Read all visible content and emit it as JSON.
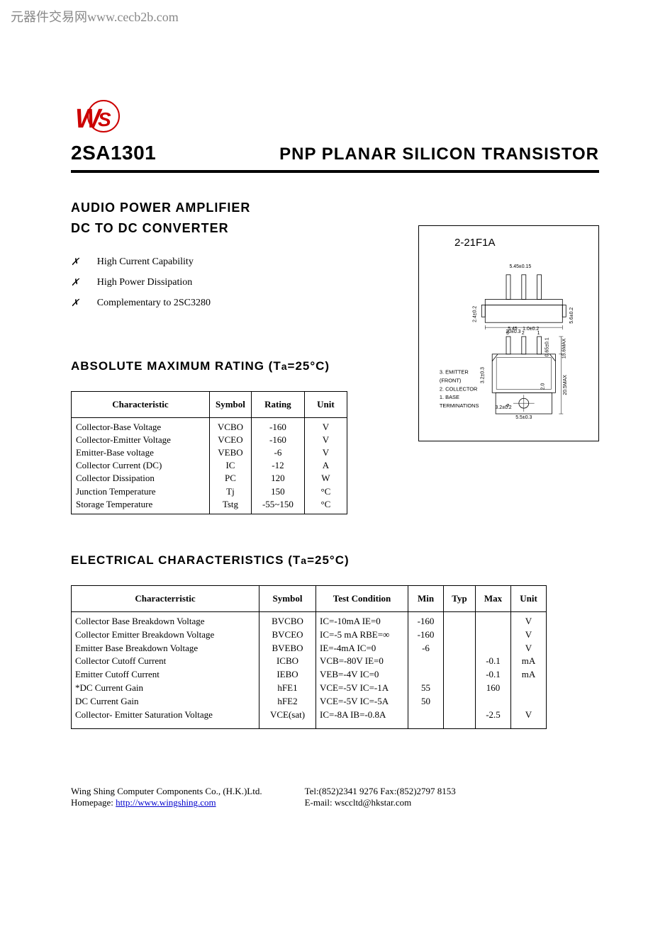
{
  "source_label": "元器件交易网www.cecb2b.com",
  "part_number": "2SA1301",
  "title": "PNP   PLANAR  SILICON  TRANSISTOR",
  "subhead_lines": [
    "AUDIO  POWER  AMPLIFIER",
    "DC  TO  DC  CONVERTER"
  ],
  "features": [
    "High  Current  Capability",
    "High  Power  Dissipation",
    "Complementary  to  2SC3280"
  ],
  "amr": {
    "section_title_prefix": "ABSOLUTE  MAXIMUM  RATING  (T",
    "section_title_a": "a",
    "section_title_suffix": "=25°C)",
    "columns": [
      "Characteristic",
      "Symbol",
      "Rating",
      "Unit"
    ],
    "rows": [
      {
        "char": "Collector-Base Voltage",
        "sym": "VCBO",
        "rat": "-160",
        "unit": "V"
      },
      {
        "char": "Collector-Emitter Voltage",
        "sym": "VCEO",
        "rat": "-160",
        "unit": "V"
      },
      {
        "char": "Emitter-Base voltage",
        "sym": "VEBO",
        "rat": "-6",
        "unit": "V"
      },
      {
        "char": "Collector Current (DC)",
        "sym": "IC",
        "rat": "-12",
        "unit": "A"
      },
      {
        "char": "Collector Dissipation",
        "sym": "PC",
        "rat": "120",
        "unit": "W"
      },
      {
        "char": "Junction Temperature",
        "sym": "Tj",
        "rat": "150",
        "unit": "°C"
      },
      {
        "char": "Storage Temperature",
        "sym": "Tstg",
        "rat": "-55~150",
        "unit": "°C"
      }
    ]
  },
  "ec": {
    "section_title_prefix": "ELECTRICAL  CHARACTERISTICS  (T",
    "section_title_a": "a",
    "section_title_suffix": "=25°C)",
    "columns": [
      "Characterristic",
      "Symbol",
      "Test Condition",
      "Min",
      "Typ",
      "Max",
      "Unit"
    ],
    "rows": [
      {
        "char": "Collector Base Breakdown Voltage",
        "sym": "BVCBO",
        "tc": "IC=-10mA    IE=0",
        "min": "-160",
        "typ": "",
        "max": "",
        "unit": "V"
      },
      {
        "char": "Collector Emitter Breakdown Voltage",
        "sym": "BVCEO",
        "tc": "IC=-5 mA    RBE=∞",
        "min": "-160",
        "typ": "",
        "max": "",
        "unit": "V"
      },
      {
        "char": "Emitter Base Breakdown Voltage",
        "sym": "BVEBO",
        "tc": "IE=-4mA    IC=0",
        "min": "-6",
        "typ": "",
        "max": "",
        "unit": "V"
      },
      {
        "char": "Collector Cutoff Current",
        "sym": "ICBO",
        "tc": "VCB=-80V    IE=0",
        "min": "",
        "typ": "",
        "max": "-0.1",
        "unit": "mA"
      },
      {
        "char": "Emitter Cutoff Current",
        "sym": "IEBO",
        "tc": "VEB=-4V    IC=0",
        "min": "",
        "typ": "",
        "max": "-0.1",
        "unit": "mA"
      },
      {
        "char": "*DC  Current  Gain",
        "sym": "hFE1",
        "tc": "VCE=-5V    IC=-1A",
        "min": "55",
        "typ": "",
        "max": "160",
        "unit": ""
      },
      {
        "char": "DC  Current  Gain",
        "sym": "hFE2",
        "tc": "VCE=-5V    IC=-5A",
        "min": "50",
        "typ": "",
        "max": "",
        "unit": ""
      },
      {
        "char": "Collector- Emitter Saturation Voltage",
        "sym": "VCE(sat)",
        "tc": "IC=-8A   IB=-0.8A",
        "min": "",
        "typ": "",
        "max": "-2.5",
        "unit": "V"
      }
    ]
  },
  "package": {
    "label": "2-21F1A",
    "terminations_title": "TERMINATIONS",
    "terms": [
      "1. BASE",
      "2. COLLECTOR",
      "   (FRONT)",
      "3. EMITTER"
    ],
    "dims": {
      "hole_dia": "3.2±0.2",
      "body_h": "20.5MAX",
      "body_w": "5.5±0.3",
      "lead_w": "1.0±0.2",
      "lead_s": "0.65±0.1",
      "pitch": "5.45",
      "overall_w": "15.6MAX",
      "top_h1": "5.6±0.2",
      "top_h2": "2.4±0.2",
      "step": "2.0",
      "top_w": "20±0.3",
      "top_step_w": "5.45±0.15",
      "thick": "3.2±0.3"
    },
    "styling": {
      "border_color": "#000000",
      "background": "#ffffff",
      "text_color": "#000000",
      "font_family": "Arial",
      "label_fontsize": 15,
      "dim_fontsize": 7,
      "line_stroke_width": 0.8
    }
  },
  "footer": {
    "company": "Wing  Shing  Computer  Components  Co.,  (H.K.)Ltd.",
    "homepage_label": "Homepage:",
    "homepage_url": "http://www.wingshing.com",
    "tel_fax": "Tel:(852)2341  9276     Fax:(852)2797  8153",
    "email_label": "E-mail:",
    "email": "wsccltd@hkstar.com"
  },
  "logo": {
    "color": "#cc0000",
    "background": "#ffffff"
  }
}
